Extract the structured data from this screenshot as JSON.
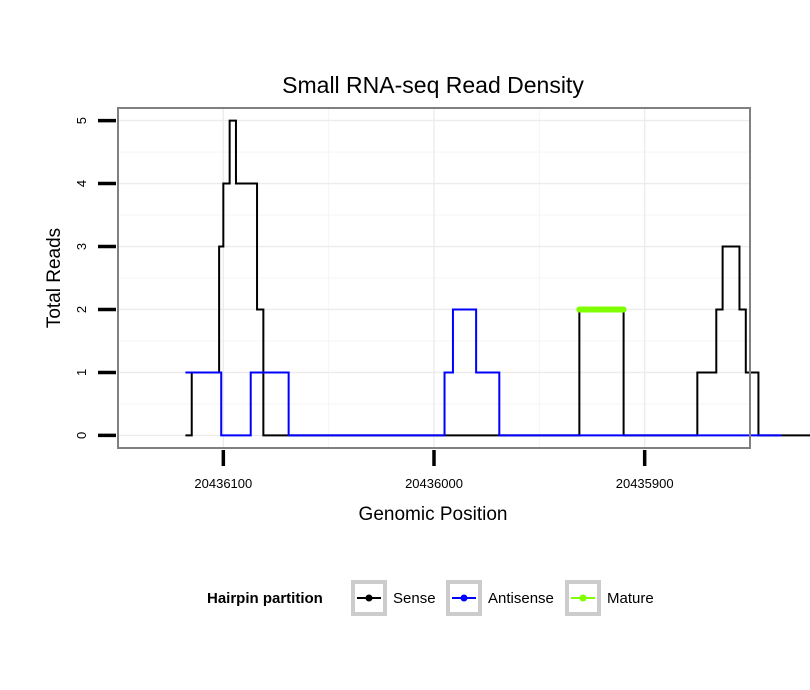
{
  "chart_data": {
    "type": "line",
    "title": "Small RNA-seq Read Density",
    "xlabel": "Genomic Position",
    "ylabel": "Total Reads",
    "x_reversed": true,
    "xlim": [
      20436150,
      20435850
    ],
    "ylim": [
      -0.2,
      5.2
    ],
    "x_ticks": [
      20436100,
      20436000,
      20435900
    ],
    "x_tick_labels": [
      "20436100",
      "20436000",
      "20435900"
    ],
    "y_ticks": [
      0,
      1,
      2,
      3,
      4,
      5
    ],
    "y_tick_labels": [
      "0",
      "1",
      "2",
      "3",
      "4",
      "5"
    ],
    "grid": true,
    "legend": {
      "title": "Hairpin partition",
      "position": "bottom",
      "entries": [
        "Sense",
        "Antisense",
        "Mature"
      ]
    },
    "series": [
      {
        "name": "Sense",
        "color": "#000000",
        "stroke_width": 2,
        "points": [
          [
            20436118,
            0
          ],
          [
            20436115,
            0
          ],
          [
            20436115,
            1
          ],
          [
            20436102,
            1
          ],
          [
            20436102,
            3
          ],
          [
            20436100,
            3
          ],
          [
            20436100,
            4
          ],
          [
            20436097,
            4
          ],
          [
            20436097,
            5
          ],
          [
            20436094,
            5
          ],
          [
            20436094,
            4
          ],
          [
            20436084,
            4
          ],
          [
            20436084,
            2
          ],
          [
            20436081,
            2
          ],
          [
            20436081,
            0
          ],
          [
            20435931,
            0
          ],
          [
            20435931,
            2
          ],
          [
            20435910,
            2
          ],
          [
            20435910,
            0
          ],
          [
            20435875,
            0
          ],
          [
            20435875,
            1
          ],
          [
            20435866,
            1
          ],
          [
            20435866,
            2
          ],
          [
            20435863,
            2
          ],
          [
            20435863,
            3
          ],
          [
            20435855,
            3
          ],
          [
            20435855,
            2
          ],
          [
            20435852,
            2
          ],
          [
            20435852,
            1
          ],
          [
            20435846,
            1
          ],
          [
            20435846,
            0
          ],
          [
            20435820,
            0
          ]
        ]
      },
      {
        "name": "Antisense",
        "color": "#0000ff",
        "stroke_width": 2,
        "points": [
          [
            20436118,
            1
          ],
          [
            20436101,
            1
          ],
          [
            20436101,
            0
          ],
          [
            20436087,
            0
          ],
          [
            20436087,
            1
          ],
          [
            20436069,
            1
          ],
          [
            20436069,
            0
          ],
          [
            20436045,
            0
          ],
          [
            20436044,
            0
          ],
          [
            20435995,
            0
          ],
          [
            20435995,
            1
          ],
          [
            20435991,
            1
          ],
          [
            20435991,
            2
          ],
          [
            20435980,
            2
          ],
          [
            20435980,
            1
          ],
          [
            20435969,
            1
          ],
          [
            20435969,
            0
          ],
          [
            20435835,
            0
          ]
        ]
      },
      {
        "name": "Mature",
        "color": "#7fff00",
        "stroke_width": 6,
        "points": [
          [
            20435931,
            2
          ],
          [
            20435910,
            2
          ]
        ]
      }
    ]
  }
}
